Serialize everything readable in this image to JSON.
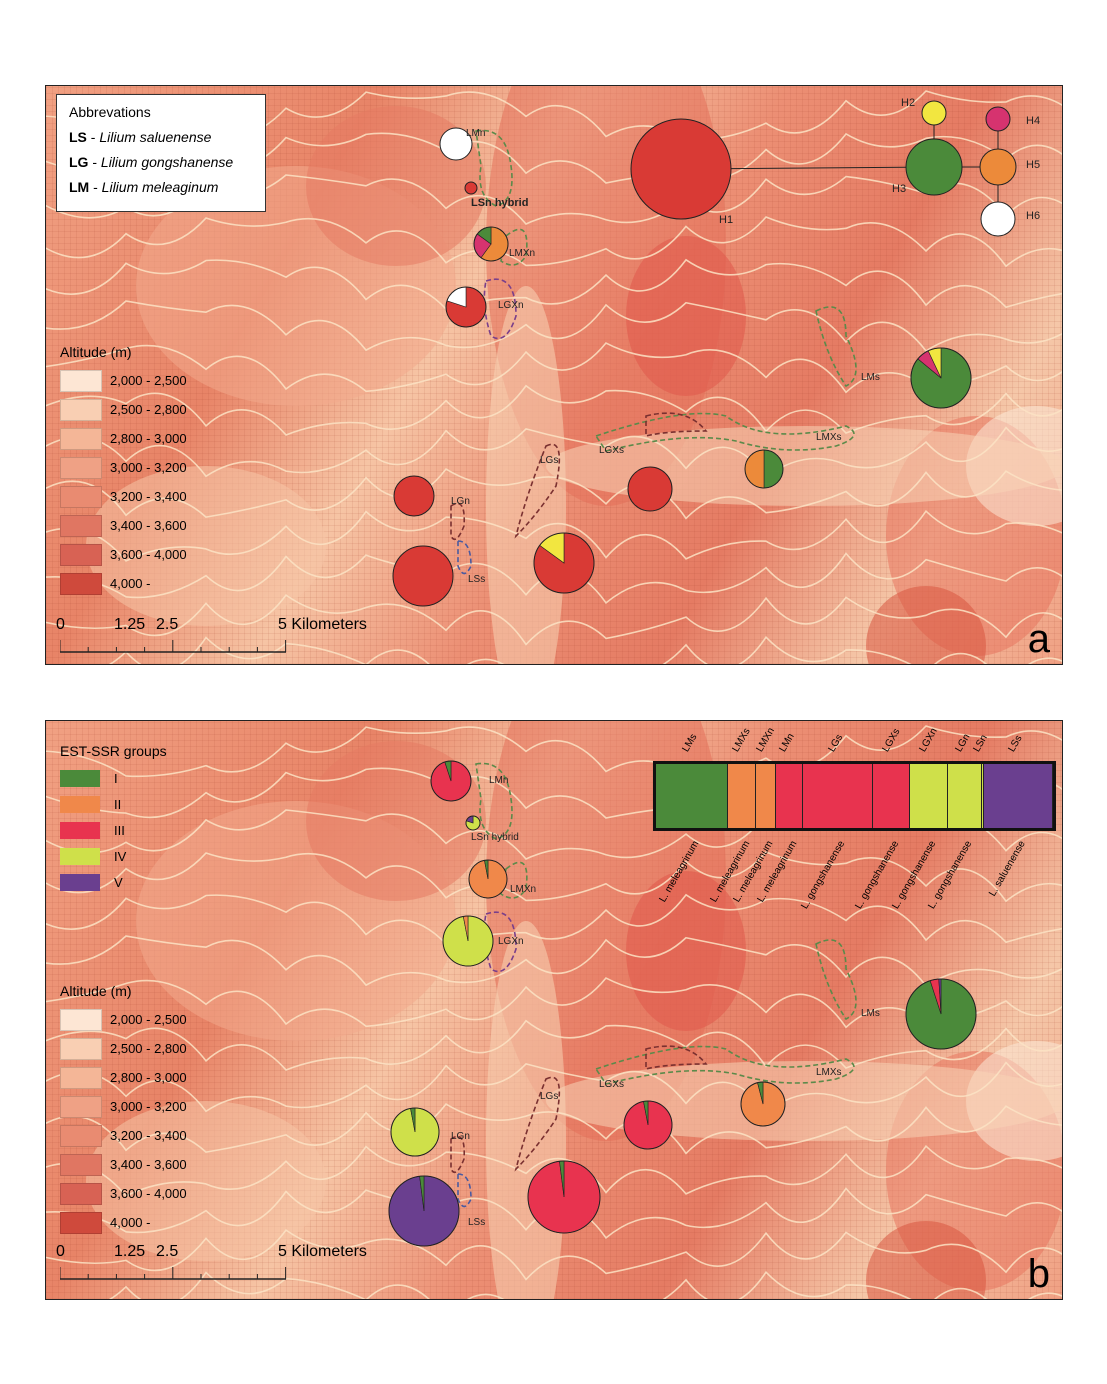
{
  "abbreviations": {
    "title": "Abbrevations",
    "items": [
      {
        "code": "LS",
        "name": "Lilium saluenense"
      },
      {
        "code": "LG",
        "name": "Lilium gongshanense"
      },
      {
        "code": "LM",
        "name": "Lilium meleaginum"
      }
    ]
  },
  "altitude_legend": {
    "title": "Altitude (m)",
    "items": [
      {
        "label": "2,000 - 2,500",
        "color": "#fde6d4"
      },
      {
        "label": "2,500 - 2,800",
        "color": "#f9cfb3"
      },
      {
        "label": "2,800 - 3,000",
        "color": "#f4b697"
      },
      {
        "label": "3,000 - 3,200",
        "color": "#efa185"
      },
      {
        "label": "3,200 - 3,400",
        "color": "#e98b71"
      },
      {
        "label": "3,400 - 3,600",
        "color": "#e07662"
      },
      {
        "label": "3,600 - 4,000",
        "color": "#d86254"
      },
      {
        "label": "4,000 -",
        "color": "#cf4a3c"
      }
    ]
  },
  "scale_bar": {
    "ticks": [
      "0",
      "1.25",
      "2.5"
    ],
    "end_label": "5 Kilometers"
  },
  "panel_a": {
    "letter": "a",
    "haplotype_colors": {
      "H1": "#d93a35",
      "H2": "#f2e640",
      "H3": "#4b8a3a",
      "H4": "#d6336f",
      "H5": "#ec8a3a",
      "H6": "#ffffff"
    },
    "haplotypes": [
      "H1",
      "H2",
      "H3",
      "H4",
      "H5",
      "H6"
    ],
    "populations": [
      {
        "id": "LMn",
        "label": "LMn",
        "pie": {
          "H6": 1
        }
      },
      {
        "id": "LSn",
        "label": "LSn hybrid",
        "pie": {
          "H1": 1
        }
      },
      {
        "id": "LMXn",
        "label": "LMXn",
        "pie": {
          "H5": 0.6,
          "H4": 0.25,
          "H3": 0.15
        }
      },
      {
        "id": "LGXn",
        "label": "LGXn",
        "pie": {
          "H1": 0.8,
          "H6": 0.2
        }
      },
      {
        "id": "LMs",
        "label": "LMs",
        "pie": {
          "H3": 0.86,
          "H4": 0.07,
          "H2": 0.07
        }
      },
      {
        "id": "LMXs",
        "label": "LMXs",
        "pie": {
          "H3": 0.5,
          "H5": 0.5
        }
      },
      {
        "id": "LGXs",
        "label": "LGXs",
        "pie": {
          "H1": 1
        }
      },
      {
        "id": "LGs",
        "label": "LGs",
        "pie": {
          "H1": 0.85,
          "H2": 0.15
        }
      },
      {
        "id": "LGn",
        "label": "LGn",
        "pie": {
          "H1": 1
        }
      },
      {
        "id": "LSs",
        "label": "LSs",
        "pie": {
          "H1": 1
        }
      }
    ]
  },
  "panel_b": {
    "letter": "b",
    "groups_title": "EST-SSR groups",
    "groups": [
      {
        "label": "I",
        "color": "#4b8a3a"
      },
      {
        "label": "II",
        "color": "#f0884a"
      },
      {
        "label": "III",
        "color": "#e8334f"
      },
      {
        "label": "IV",
        "color": "#cfe04a"
      },
      {
        "label": "V",
        "color": "#6a3f8f"
      }
    ],
    "populations": [
      {
        "id": "LMn",
        "label": "LMn",
        "pie": {
          "III": 0.95,
          "I": 0.05
        }
      },
      {
        "id": "LSn",
        "label": "LSn hybrid",
        "pie": {
          "IV": 0.8,
          "V": 0.2
        }
      },
      {
        "id": "LMXn",
        "label": "LMXn",
        "pie": {
          "II": 0.97,
          "I": 0.03
        }
      },
      {
        "id": "LGXn",
        "label": "LGXn",
        "pie": {
          "IV": 0.97,
          "II": 0.03
        }
      },
      {
        "id": "LMs",
        "label": "LMs",
        "pie": {
          "I": 0.95,
          "III": 0.04,
          "V": 0.01
        }
      },
      {
        "id": "LMXs",
        "label": "LMXs",
        "pie": {
          "II": 0.96,
          "I": 0.04
        }
      },
      {
        "id": "LGXs",
        "label": "LGXs",
        "pie": {
          "III": 0.97,
          "I": 0.03
        }
      },
      {
        "id": "LGs",
        "label": "LGs",
        "pie": {
          "III": 0.98,
          "I": 0.02
        }
      },
      {
        "id": "LGn",
        "label": "LGn",
        "pie": {
          "IV": 0.97,
          "I": 0.03
        }
      },
      {
        "id": "LSs",
        "label": "LSs",
        "pie": {
          "V": 0.98,
          "I": 0.02
        }
      }
    ],
    "structure": [
      {
        "pop": "LMs",
        "species": "L. meleagrinum",
        "group": "I",
        "n": 22
      },
      {
        "pop": "LMXs",
        "species": "L. meleagrinum",
        "group": "II",
        "n": 8.5
      },
      {
        "pop": "LMXn",
        "species": "L. meleagrinum",
        "group": "II",
        "n": 6
      },
      {
        "pop": "LMn",
        "species": "L. meleagrinum",
        "group": "III",
        "n": 8
      },
      {
        "pop": "LGs",
        "species": "L. gongshanense",
        "group": "III",
        "n": 21.5
      },
      {
        "pop": "LGXs",
        "species": "L. gongshanense",
        "group": "III",
        "n": 11.2
      },
      {
        "pop": "LGXn",
        "species": "L. gongshanense",
        "group": "IV",
        "n": 11.3
      },
      {
        "pop": "LGn",
        "species": "L. gongshanense",
        "group": "IV",
        "n": 10.5
      },
      {
        "pop": "LSn",
        "species": "",
        "group": "IV",
        "n": 0.5
      },
      {
        "pop": "LSs",
        "species": "L. saluenense",
        "group": "V",
        "n": 21
      }
    ]
  }
}
